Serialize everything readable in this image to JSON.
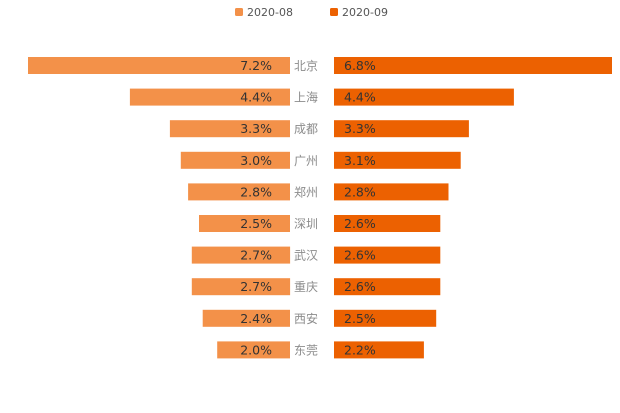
{
  "chart_data": {
    "type": "bar",
    "orientation": "horizontal-butterfly",
    "categories": [
      "北京",
      "上海",
      "成都",
      "广州",
      "郑州",
      "深圳",
      "武汉",
      "重庆",
      "西安",
      "东莞"
    ],
    "series": [
      {
        "name": "2020-08",
        "color": "#F39149",
        "values": [
          7.2,
          4.4,
          3.3,
          3.0,
          2.8,
          2.5,
          2.7,
          2.7,
          2.4,
          2.0
        ],
        "labels": [
          "7.2%",
          "4.4%",
          "3.3%",
          "3.0%",
          "2.8%",
          "2.5%",
          "2.7%",
          "2.7%",
          "2.4%",
          "2.0%"
        ]
      },
      {
        "name": "2020-09",
        "color": "#EC6101",
        "values": [
          6.8,
          4.4,
          3.3,
          3.1,
          2.8,
          2.6,
          2.6,
          2.6,
          2.5,
          2.2
        ],
        "labels": [
          "6.8%",
          "4.4%",
          "3.3%",
          "3.1%",
          "2.8%",
          "2.6%",
          "2.6%",
          "2.6%",
          "2.5%",
          "2.2%"
        ]
      }
    ],
    "unit": "%",
    "legend": "top-center",
    "grid": false
  }
}
